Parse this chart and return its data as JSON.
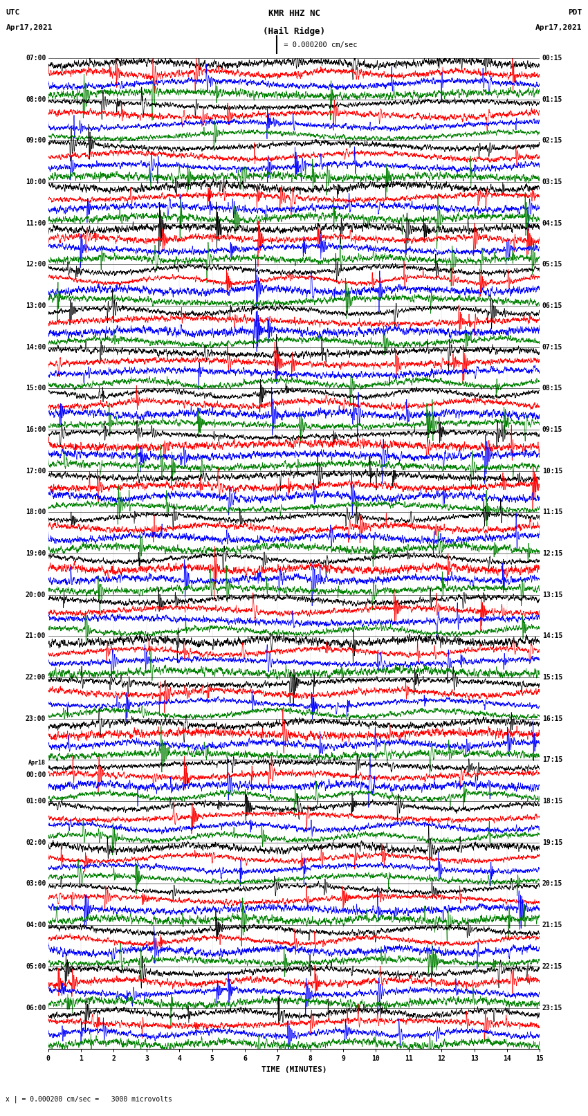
{
  "title_line1": "KMR HHZ NC",
  "title_line2": "(Hail Ridge)",
  "scale_label": " = 0.000200 cm/sec",
  "footer_label": "x | = 0.000200 cm/sec =   3000 microvolts",
  "utc_label1": "UTC",
  "utc_label2": "Apr17,2021",
  "pdt_label1": "PDT",
  "pdt_label2": "Apr17,2021",
  "xlabel": "TIME (MINUTES)",
  "left_times": [
    "07:00",
    "08:00",
    "09:00",
    "10:00",
    "11:00",
    "12:00",
    "13:00",
    "14:00",
    "15:00",
    "16:00",
    "17:00",
    "18:00",
    "19:00",
    "20:00",
    "21:00",
    "22:00",
    "23:00",
    "Apr18\n00:00",
    "01:00",
    "02:00",
    "03:00",
    "04:00",
    "05:00",
    "06:00"
  ],
  "right_times": [
    "00:15",
    "01:15",
    "02:15",
    "03:15",
    "04:15",
    "05:15",
    "06:15",
    "07:15",
    "08:15",
    "09:15",
    "10:15",
    "11:15",
    "12:15",
    "13:15",
    "14:15",
    "15:15",
    "16:15",
    "17:15",
    "18:15",
    "19:15",
    "20:15",
    "21:15",
    "22:15",
    "23:15"
  ],
  "n_rows": 24,
  "traces_per_row": 4,
  "colors": [
    "black",
    "red",
    "blue",
    "green"
  ],
  "background_color": "white",
  "line_width": 0.5,
  "fig_width": 8.5,
  "fig_height": 16.13,
  "dpi": 100
}
